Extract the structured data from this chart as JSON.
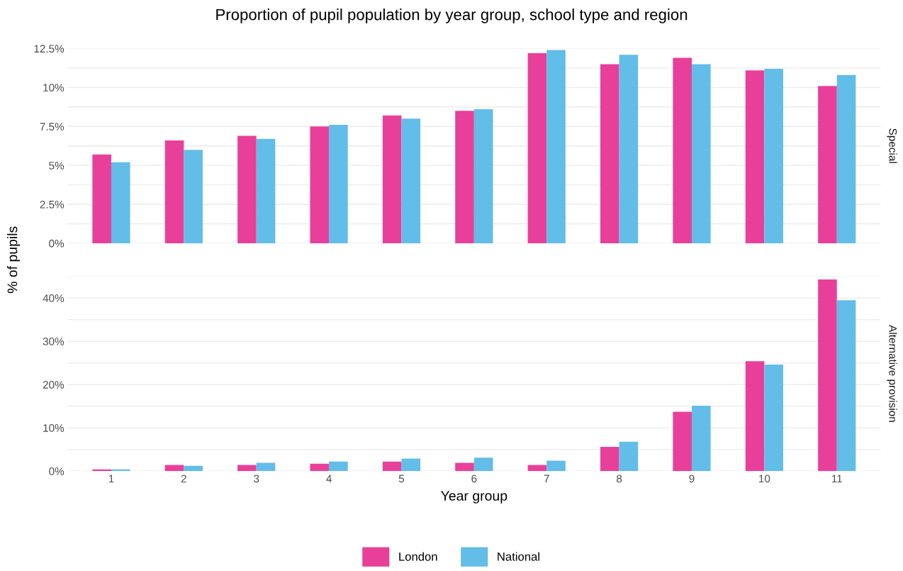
{
  "chart_data": [
    {
      "type": "bar",
      "title": "Proportion of pupil population by year group, school type and region",
      "ylabel": "% of pupils",
      "annotations": [
        "Special"
      ],
      "categories": [
        "1",
        "2",
        "3",
        "4",
        "5",
        "6",
        "7",
        "8",
        "9",
        "10",
        "11"
      ],
      "series": [
        {
          "name": "London",
          "color": "#e8409a",
          "values": [
            5.7,
            6.6,
            6.9,
            7.5,
            8.2,
            8.5,
            12.2,
            11.5,
            11.9,
            11.1,
            10.1
          ]
        },
        {
          "name": "National",
          "color": "#62bde8",
          "values": [
            5.2,
            6.0,
            6.7,
            7.6,
            8.0,
            8.6,
            12.4,
            12.1,
            11.5,
            11.2,
            10.8
          ]
        }
      ],
      "ylim": [
        0,
        12.5
      ],
      "yticks": [
        {
          "value": 0,
          "label": "0%"
        },
        {
          "value": 2.5,
          "label": "2.5%"
        },
        {
          "value": 5,
          "label": "5%"
        },
        {
          "value": 7.5,
          "label": "7.5%"
        },
        {
          "value": 10,
          "label": "10%"
        },
        {
          "value": 12.5,
          "label": "12.5%"
        },
        {
          "value": 1.25,
          "label": null
        },
        {
          "value": 3.75,
          "label": null
        },
        {
          "value": 6.25,
          "label": null
        },
        {
          "value": 8.75,
          "label": null
        },
        {
          "value": 11.25,
          "label": null
        }
      ],
      "grid": "y",
      "tick_labels": "y",
      "legend": "bottom"
    },
    {
      "type": "bar",
      "xlabel": "Year group",
      "annotations": [
        "Alternative provision"
      ],
      "categories": [
        "1",
        "2",
        "3",
        "4",
        "5",
        "6",
        "7",
        "8",
        "9",
        "10",
        "11"
      ],
      "series": [
        {
          "color": "#e8409a",
          "values": [
            0.4,
            1.4,
            1.4,
            1.7,
            2.2,
            1.9,
            1.4,
            5.6,
            13.7,
            25.4,
            44.3
          ]
        },
        {
          "color": "#62bde8",
          "values": [
            0.4,
            1.2,
            1.9,
            2.2,
            2.9,
            3.1,
            2.4,
            6.8,
            15.1,
            24.6,
            39.5
          ]
        }
      ],
      "ylim": [
        0,
        45
      ],
      "yticks": [
        {
          "value": 0,
          "label": "0%"
        },
        {
          "value": 10,
          "label": "10%"
        },
        {
          "value": 20,
          "label": "20%"
        },
        {
          "value": 30,
          "label": "30%"
        },
        {
          "value": 40,
          "label": "40%"
        },
        {
          "value": 5,
          "label": null
        },
        {
          "value": 15,
          "label": null
        },
        {
          "value": 25,
          "label": null
        },
        {
          "value": 35,
          "label": null
        },
        {
          "value": 45,
          "label": null
        }
      ],
      "grid": "y"
    }
  ]
}
